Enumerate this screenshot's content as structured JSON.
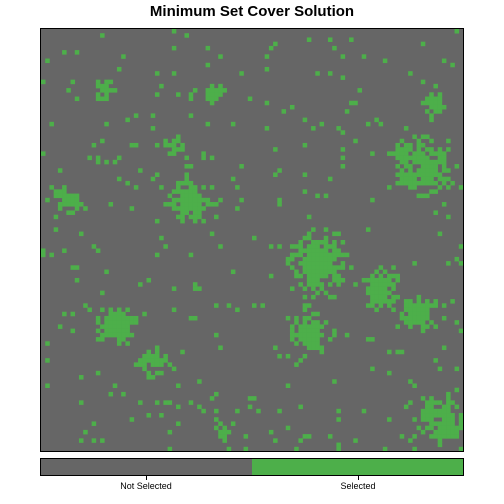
{
  "chart_data": {
    "type": "heatmap",
    "title": "Minimum Set Cover Solution",
    "grid_size": [
      100,
      100
    ],
    "categories": [
      "Not Selected",
      "Selected"
    ],
    "colors": {
      "not_selected": "#666666",
      "selected": "#4daf4a"
    },
    "legend_position": "bottom",
    "selected_clusters": [
      {
        "label": "upper-left",
        "cx": 15,
        "cy": 14,
        "r": 1.6
      },
      {
        "label": "top-middle",
        "cx": 40,
        "cy": 15,
        "r": 1.5
      },
      {
        "label": "upper-right",
        "cx": 93,
        "cy": 17,
        "r": 1.8
      },
      {
        "label": "right-middle",
        "cx": 90,
        "cy": 33,
        "r": 4.5
      },
      {
        "label": "left-middle",
        "cx": 6,
        "cy": 40,
        "r": 2.2
      },
      {
        "label": "center-left",
        "cx": 35,
        "cy": 40,
        "r": 3.4
      },
      {
        "label": "center-upper",
        "cx": 31,
        "cy": 27,
        "r": 1.6
      },
      {
        "label": "right-upper",
        "cx": 85,
        "cy": 29,
        "r": 2
      },
      {
        "label": "center",
        "cx": 65,
        "cy": 55,
        "r": 5
      },
      {
        "label": "center-right",
        "cx": 80,
        "cy": 61,
        "r": 3.4
      },
      {
        "label": "right-lower",
        "cx": 89,
        "cy": 67,
        "r": 2.8
      },
      {
        "label": "center-lower",
        "cx": 63,
        "cy": 71,
        "r": 3.4
      },
      {
        "label": "lower-left",
        "cx": 17,
        "cy": 70,
        "r": 3.2
      },
      {
        "label": "lower-left-tail",
        "cx": 26,
        "cy": 78,
        "r": 2.4
      },
      {
        "label": "bottom-right",
        "cx": 94,
        "cy": 92,
        "r": 3.6
      },
      {
        "label": "bottom-middle",
        "cx": 43,
        "cy": 95,
        "r": 1.4
      }
    ],
    "scatter_density": 0.03
  }
}
